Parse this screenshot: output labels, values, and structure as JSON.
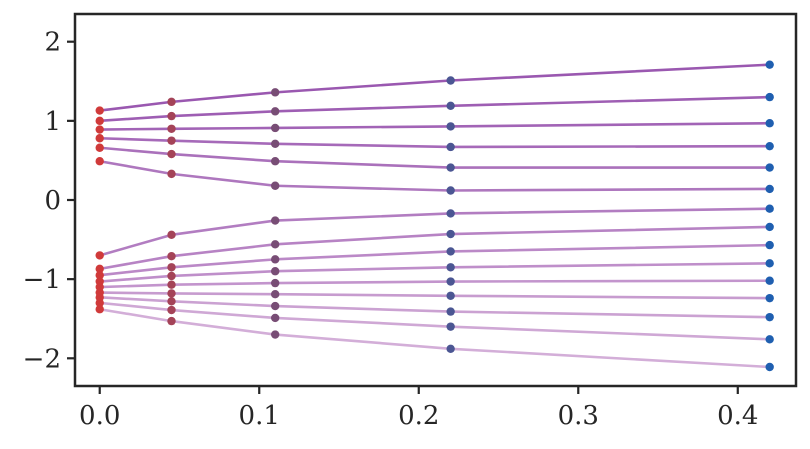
{
  "chart_data": {
    "type": "line",
    "title": "",
    "xlabel": "",
    "ylabel": "",
    "xlim": [
      -0.0155,
      0.4365
    ],
    "ylim": [
      -2.35,
      2.35
    ],
    "xticks": [
      0.0,
      0.1,
      0.2,
      0.3,
      0.4
    ],
    "xtick_labels": [
      "0.0",
      "0.1",
      "0.2",
      "0.3",
      "0.4"
    ],
    "yticks": [
      2,
      1,
      0,
      -1,
      -2
    ],
    "ytick_labels": [
      "2",
      "1",
      "0",
      "−1",
      "−2"
    ],
    "grid": false,
    "legend": "none",
    "x": [
      0.0,
      0.045,
      0.11,
      0.22,
      0.42
    ],
    "colors": {
      "start_point": "#d03a3a",
      "end_point": "#1f5fb0",
      "line_top": "#9a58b0",
      "line_bottom": "#d3aed8",
      "frame": "#262626"
    },
    "series": [
      {
        "values": [
          1.13,
          1.24,
          1.36,
          1.51,
          1.71
        ]
      },
      {
        "values": [
          1.0,
          1.06,
          1.12,
          1.19,
          1.3
        ]
      },
      {
        "values": [
          0.89,
          0.9,
          0.91,
          0.93,
          0.97
        ]
      },
      {
        "values": [
          0.78,
          0.75,
          0.71,
          0.67,
          0.68
        ]
      },
      {
        "values": [
          0.66,
          0.58,
          0.49,
          0.41,
          0.41
        ]
      },
      {
        "values": [
          0.49,
          0.33,
          0.18,
          0.12,
          0.14
        ]
      },
      {
        "values": [
          -0.7,
          -0.44,
          -0.26,
          -0.17,
          -0.11
        ]
      },
      {
        "values": [
          -0.87,
          -0.71,
          -0.56,
          -0.43,
          -0.34
        ]
      },
      {
        "values": [
          -0.95,
          -0.85,
          -0.75,
          -0.65,
          -0.57
        ]
      },
      {
        "values": [
          -1.03,
          -0.96,
          -0.9,
          -0.85,
          -0.8
        ]
      },
      {
        "values": [
          -1.1,
          -1.07,
          -1.05,
          -1.03,
          -1.02
        ]
      },
      {
        "values": [
          -1.17,
          -1.18,
          -1.19,
          -1.21,
          -1.24
        ]
      },
      {
        "values": [
          -1.23,
          -1.28,
          -1.34,
          -1.41,
          -1.48
        ]
      },
      {
        "values": [
          -1.3,
          -1.39,
          -1.49,
          -1.6,
          -1.76
        ]
      },
      {
        "values": [
          -1.38,
          -1.53,
          -1.7,
          -1.88,
          -2.11
        ]
      }
    ]
  }
}
